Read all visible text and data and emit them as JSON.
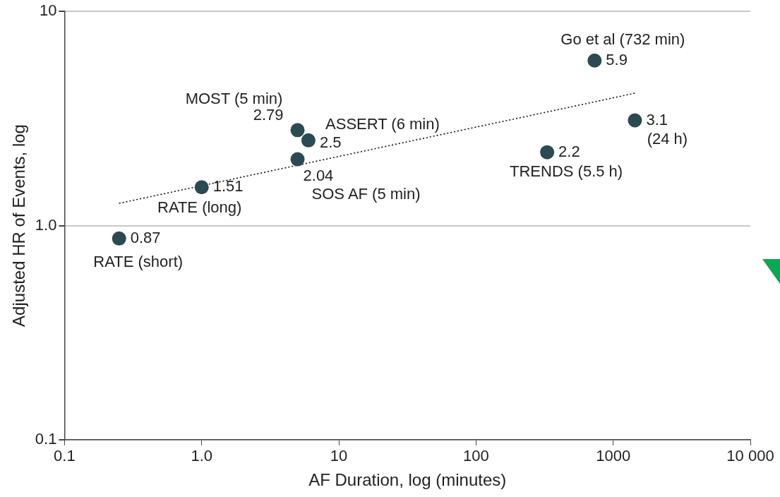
{
  "chart_data": {
    "type": "scatter",
    "xlabel": "AF Duration, log (minutes)",
    "ylabel": "Adjusted HR of Events, log",
    "log": "xy",
    "grid": "y",
    "legend": false,
    "xlim": [
      0.1,
      10000
    ],
    "xticks": [
      0.1,
      {
        "value": 1,
        "label": "1.0"
      },
      10,
      100,
      1000,
      {
        "value": 10000,
        "label": "10 000"
      }
    ],
    "ylim": [
      0.1,
      10
    ],
    "yticks": [
      0.1,
      {
        "value": 1,
        "label": "1.0"
      },
      10
    ],
    "series": [
      {
        "type": "scatter",
        "color": "#2b4a52",
        "marker": "circle",
        "data_labels": true,
        "x": [
          0.25,
          1,
          5,
          6,
          5,
          330,
          732,
          1440
        ],
        "values": [
          0.87,
          1.51,
          2.79,
          2.5,
          2.04,
          2.2,
          5.9,
          3.1
        ]
      },
      {
        "type": "line",
        "color": "#000000",
        "marker": "none",
        "line_style": "dotted",
        "x": [
          0.25,
          1440
        ],
        "values": [
          1.27,
          4.15
        ]
      }
    ],
    "annotations": [
      {
        "text": "RATE (short)",
        "x": 0.25,
        "y": 0.87
      },
      {
        "text": "RATE (long)",
        "x": 1,
        "y": 1.51
      },
      {
        "text": "MOST (5 min)",
        "x": 5,
        "y": 2.79
      },
      {
        "text": "ASSERT (6 min)",
        "x": 6,
        "y": 2.5
      },
      {
        "text": "SOS AF (5 min)",
        "x": 5,
        "y": 2.04
      },
      {
        "text": "TRENDS (5.5 h)",
        "x": 330,
        "y": 2.2
      },
      {
        "text": "Go et al (732 min)",
        "x": 732,
        "y": 5.9
      },
      {
        "text": "(24 h)",
        "x": 1440,
        "y": 3.1
      }
    ]
  }
}
